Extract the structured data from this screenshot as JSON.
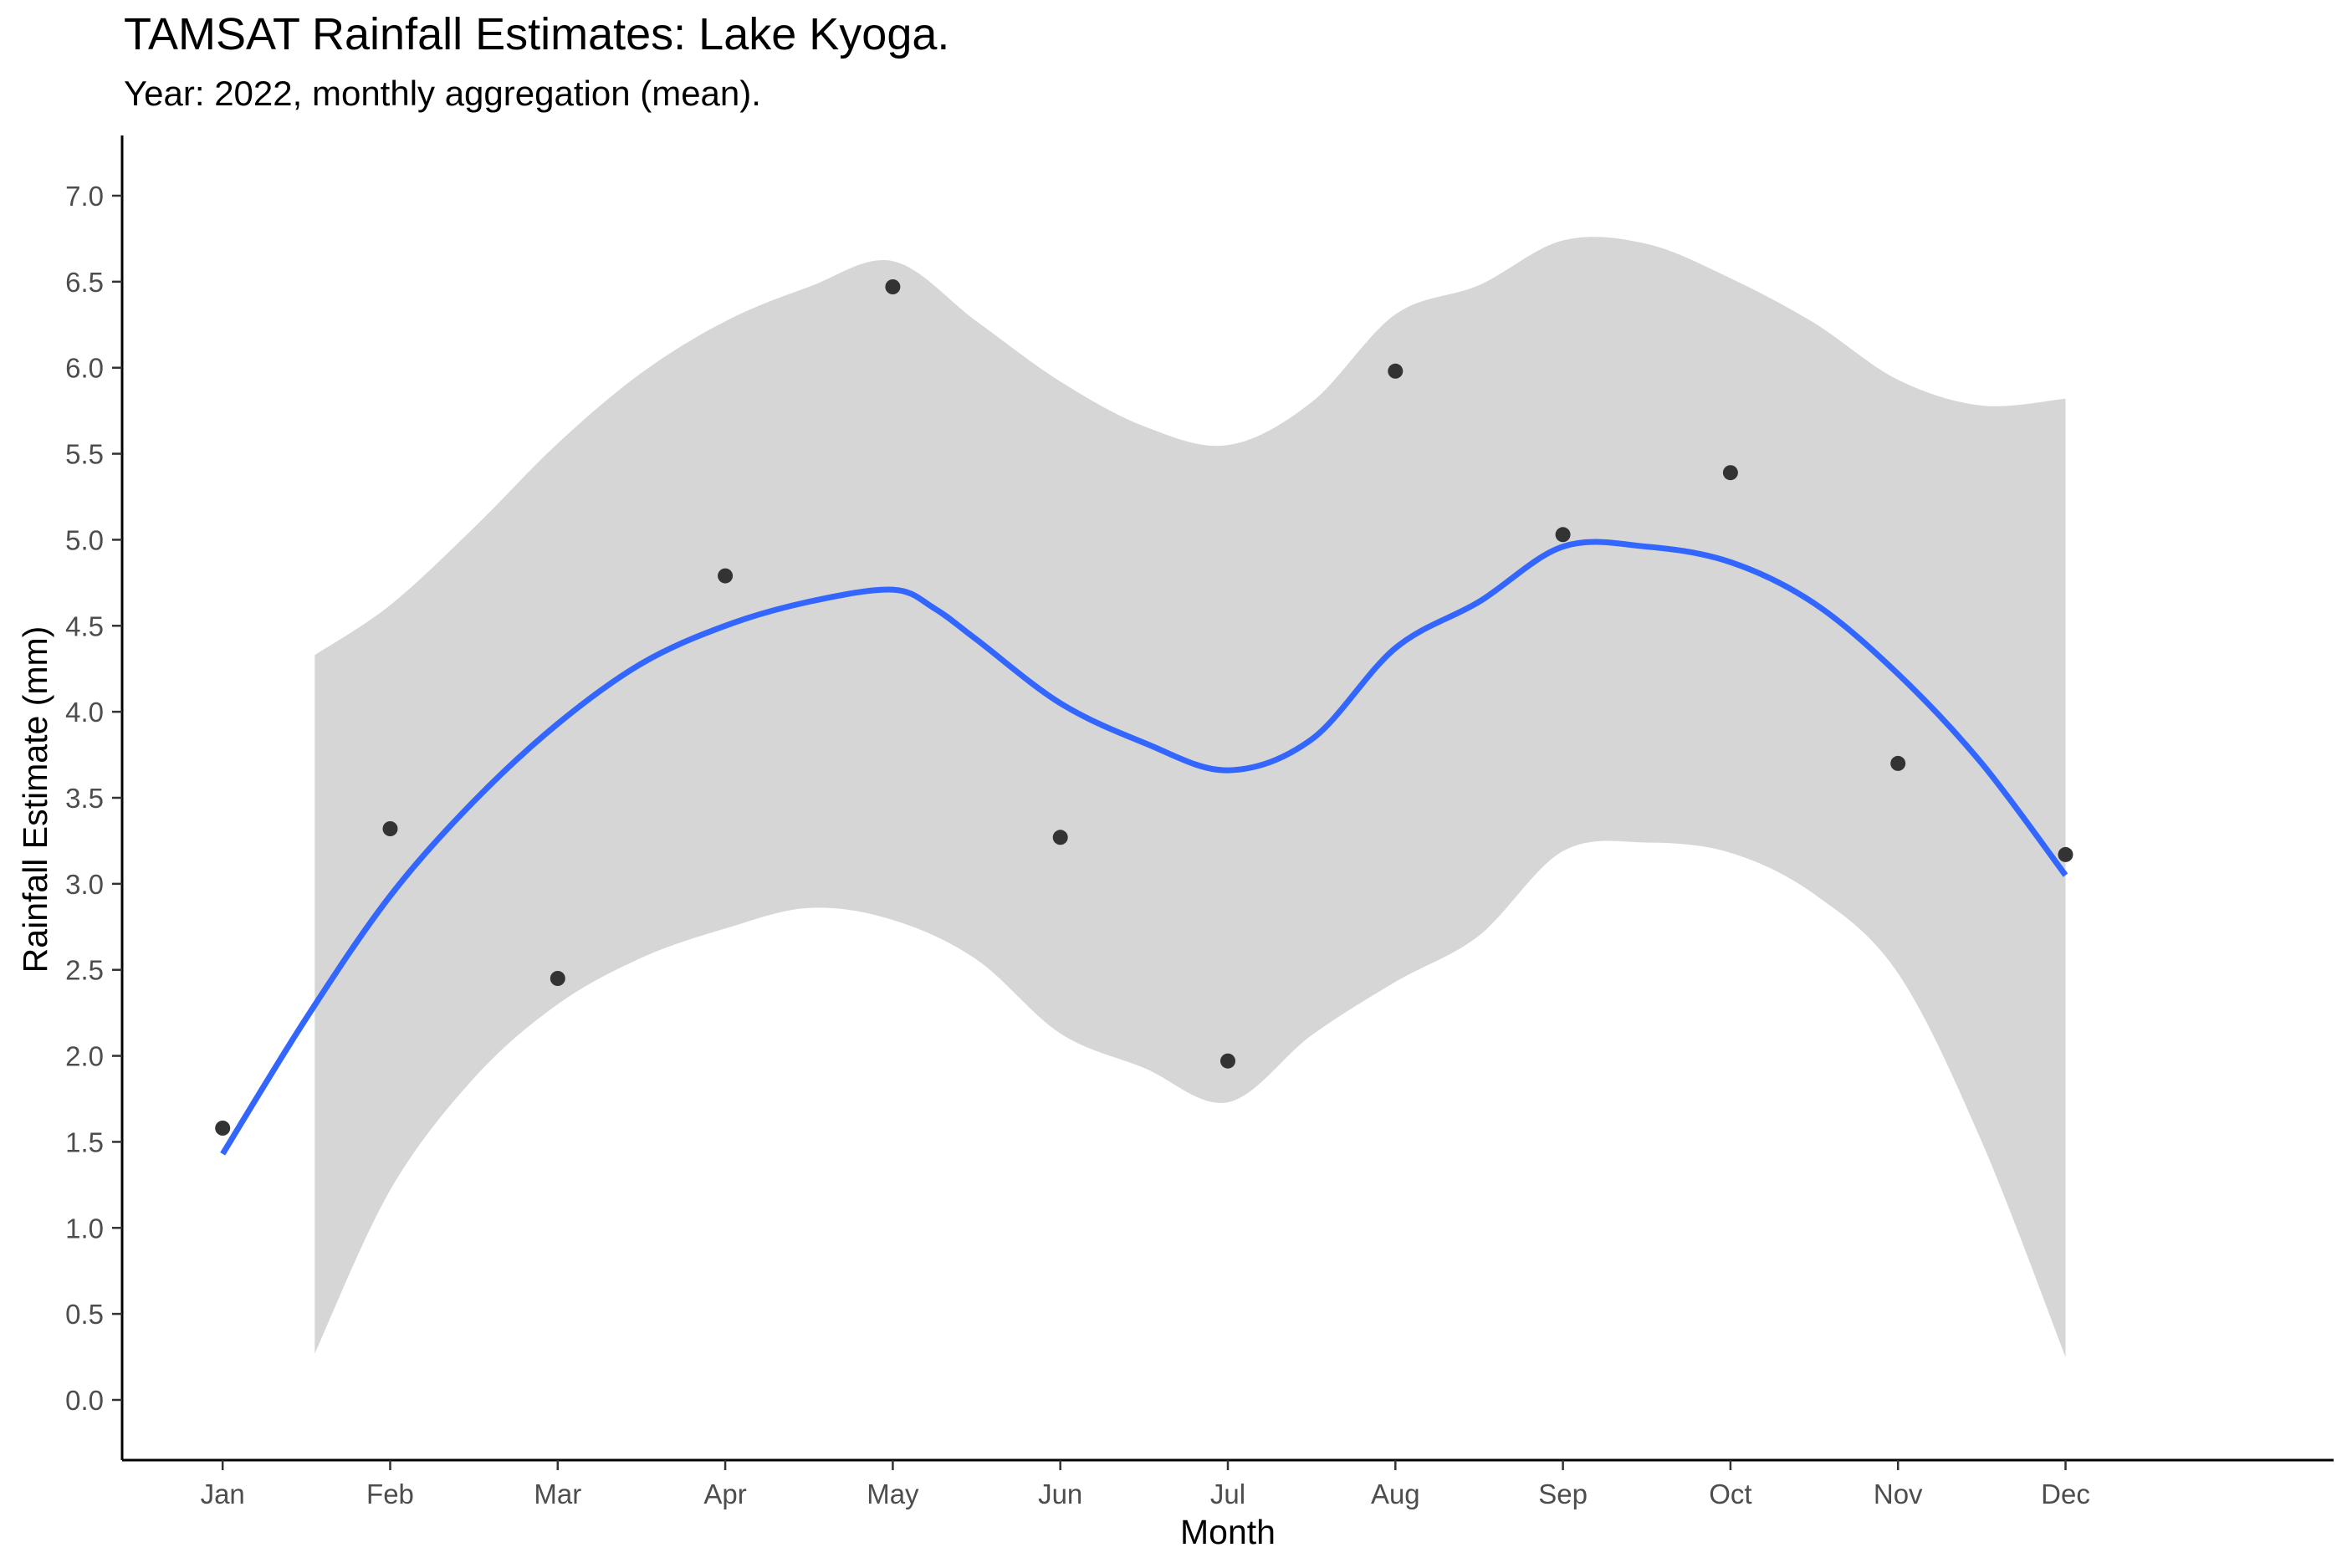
{
  "chart_data": {
    "type": "line",
    "title": "TAMSAT Rainfall Estimates: Lake Kyoga.",
    "subtitle": "Year: 2022, monthly aggregation (mean).",
    "xlabel": "Month",
    "ylabel": "Rainfall Estimate (mm)",
    "categories": [
      "Jan",
      "Feb",
      "Mar",
      "Apr",
      "May",
      "Jun",
      "Jul",
      "Aug",
      "Sep",
      "Oct",
      "Nov",
      "Dec"
    ],
    "y_ticks": [
      "0.0",
      "0.5",
      "1.0",
      "1.5",
      "2.0",
      "2.5",
      "3.0",
      "3.5",
      "4.0",
      "4.5",
      "5.0",
      "5.5",
      "6.0",
      "6.5",
      "7.0"
    ],
    "ylim": [
      -0.35,
      7.35
    ],
    "grid": false,
    "series": [
      {
        "kind": "points",
        "x": [
          1,
          2,
          3,
          4,
          5,
          6,
          7,
          8,
          9,
          10,
          11,
          12
        ],
        "values": [
          1.58,
          3.32,
          2.45,
          4.79,
          6.47,
          3.27,
          1.97,
          5.98,
          5.03,
          5.39,
          3.7,
          3.17
        ]
      },
      {
        "kind": "smooth",
        "x": [
          1,
          1.5,
          2,
          2.5,
          3,
          3.5,
          4,
          4.5,
          5,
          5.25,
          5.5,
          6,
          6.5,
          7,
          7.5,
          8,
          8.5,
          9,
          9.5,
          10,
          10.5,
          11,
          11.5,
          12
        ],
        "values": [
          1.43,
          2.22,
          2.93,
          3.48,
          3.93,
          4.28,
          4.5,
          4.64,
          4.71,
          4.6,
          4.42,
          4.05,
          3.82,
          3.66,
          3.84,
          4.37,
          4.64,
          4.96,
          4.96,
          4.87,
          4.63,
          4.22,
          3.7,
          3.05
        ]
      },
      {
        "kind": "confidence-band",
        "x": [
          1.55,
          2,
          2.5,
          3,
          3.5,
          4,
          4.5,
          5,
          5.5,
          6,
          6.5,
          7,
          7.5,
          8,
          8.5,
          9,
          9.5,
          10,
          10.5,
          11,
          11.5,
          12
        ],
        "upper": [
          4.33,
          4.62,
          5.07,
          5.56,
          5.97,
          6.27,
          6.47,
          6.62,
          6.27,
          5.92,
          5.66,
          5.55,
          5.8,
          6.31,
          6.48,
          6.74,
          6.72,
          6.52,
          6.26,
          5.93,
          5.78,
          5.82
        ],
        "lower": [
          0.27,
          1.22,
          1.87,
          2.3,
          2.57,
          2.74,
          2.86,
          2.79,
          2.56,
          2.13,
          1.93,
          1.73,
          2.12,
          2.43,
          2.7,
          3.19,
          3.24,
          3.18,
          2.94,
          2.48,
          1.5,
          0.25
        ]
      }
    ],
    "colors": {
      "smooth_line": "#3366ff",
      "band": "#d6d6d6",
      "points": "#333333",
      "axis": "#000000",
      "tick_label": "#4d4d4d"
    }
  }
}
